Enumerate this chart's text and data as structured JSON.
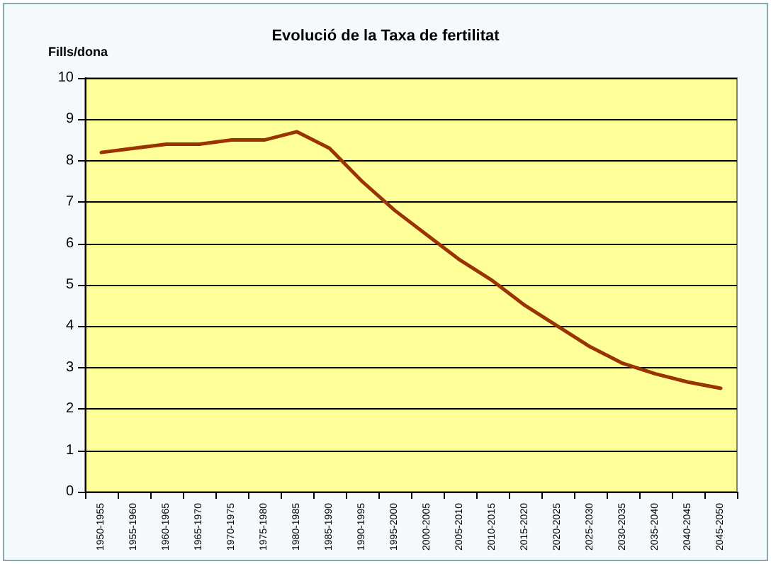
{
  "chart_data": {
    "type": "line",
    "title": "Evolució de la Taxa de fertilitat",
    "ylabel": "Fills/dona",
    "categories": [
      "1950-1955",
      "1955-1960",
      "1960-1965",
      "1965-1970",
      "1970-1975",
      "1975-1980",
      "1980-1985",
      "1985-1990",
      "1990-1995",
      "1995-2000",
      "2000-2005",
      "2005-2010",
      "2010-2015",
      "2015-2020",
      "2020-2025",
      "2025-2030",
      "2030-2035",
      "2035-2040",
      "2040-2045",
      "2045-2050"
    ],
    "series": [
      {
        "color": "#993300",
        "values": [
          8.2,
          8.3,
          8.4,
          8.4,
          8.5,
          8.5,
          8.7,
          8.3,
          7.5,
          6.8,
          6.2,
          5.6,
          5.1,
          4.5,
          4.0,
          3.5,
          3.1,
          2.85,
          2.65,
          2.5
        ]
      }
    ],
    "ylim": [
      0,
      10
    ],
    "yticks": [
      0,
      1,
      2,
      3,
      4,
      5,
      6,
      7,
      8,
      9,
      10
    ],
    "grid": "y",
    "marker": "none",
    "line_style": "solid"
  }
}
